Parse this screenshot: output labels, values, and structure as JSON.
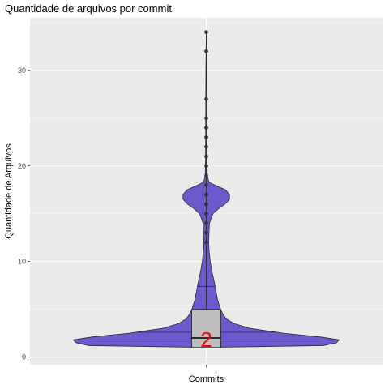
{
  "chart_data": {
    "type": "violin",
    "title": "Quantidade de arquivos por commit",
    "xlabel": "Commits",
    "ylabel": "Quantidade de Arquivos",
    "categories": [
      "Commits"
    ],
    "ylim": [
      -0.8,
      35.5
    ],
    "yticks": [
      0,
      10,
      20,
      30
    ],
    "grid": true,
    "colors": {
      "violin_fill": "#6a5acd",
      "violin_stroke": "#2b2b2b",
      "box_fill": "#bebebe",
      "panel_bg": "#ebebeb",
      "grid_major": "#ffffff",
      "median_label": "#ff0000",
      "outlier": "#333333"
    },
    "violin_quantiles": [
      1.8,
      2.6,
      7.4
    ],
    "box": {
      "q1": 1,
      "median": 2,
      "q3": 5,
      "whisker_low": 1,
      "whisker_high": 34
    },
    "median_label": "2",
    "outliers": [
      12,
      13,
      14,
      15,
      16,
      17,
      18,
      19,
      20,
      21,
      22,
      23,
      24,
      25,
      27,
      32,
      34
    ],
    "density_profile": [
      {
        "y": 1.0,
        "w": 0.0
      },
      {
        "y": 1.2,
        "w": 0.88
      },
      {
        "y": 1.5,
        "w": 0.98
      },
      {
        "y": 1.8,
        "w": 1.0
      },
      {
        "y": 2.1,
        "w": 0.86
      },
      {
        "y": 2.5,
        "w": 0.58
      },
      {
        "y": 3.0,
        "w": 0.33
      },
      {
        "y": 3.5,
        "w": 0.21
      },
      {
        "y": 4.0,
        "w": 0.15
      },
      {
        "y": 4.5,
        "w": 0.125
      },
      {
        "y": 5.0,
        "w": 0.108
      },
      {
        "y": 6.0,
        "w": 0.085
      },
      {
        "y": 7.0,
        "w": 0.072
      },
      {
        "y": 8.0,
        "w": 0.058
      },
      {
        "y": 9.0,
        "w": 0.042
      },
      {
        "y": 10.0,
        "w": 0.03
      },
      {
        "y": 11.0,
        "w": 0.022
      },
      {
        "y": 12.0,
        "w": 0.018
      },
      {
        "y": 13.0,
        "w": 0.021
      },
      {
        "y": 14.0,
        "w": 0.024
      },
      {
        "y": 15.0,
        "w": 0.05
      },
      {
        "y": 15.5,
        "w": 0.09
      },
      {
        "y": 16.0,
        "w": 0.14
      },
      {
        "y": 16.5,
        "w": 0.175
      },
      {
        "y": 17.0,
        "w": 0.175
      },
      {
        "y": 17.5,
        "w": 0.145
      },
      {
        "y": 17.9,
        "w": 0.08
      },
      {
        "y": 18.3,
        "w": 0.02
      },
      {
        "y": 19.0,
        "w": 0.008
      },
      {
        "y": 21.0,
        "w": 0.005
      },
      {
        "y": 25.0,
        "w": 0.004
      },
      {
        "y": 30.0,
        "w": 0.003
      },
      {
        "y": 34.0,
        "w": 0.0
      }
    ]
  }
}
